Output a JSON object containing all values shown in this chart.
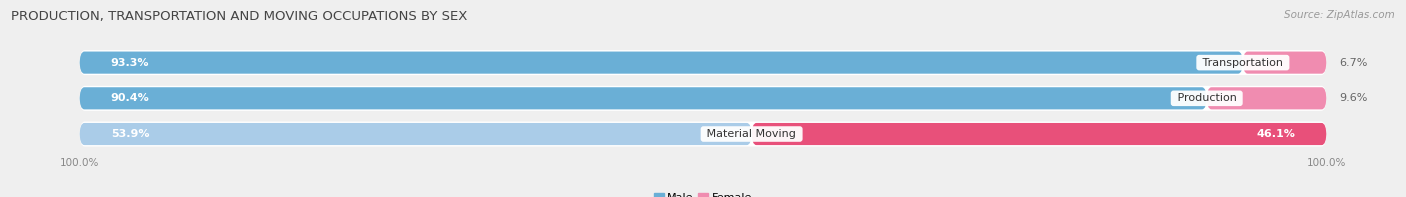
{
  "title": "PRODUCTION, TRANSPORTATION AND MOVING OCCUPATIONS BY SEX",
  "source": "Source: ZipAtlas.com",
  "categories": [
    "Transportation",
    "Production",
    "Material Moving"
  ],
  "male_values": [
    93.3,
    90.4,
    53.9
  ],
  "female_values": [
    6.7,
    9.6,
    46.1
  ],
  "male_colors": [
    "#6aafd6",
    "#6aafd6",
    "#aacce8"
  ],
  "female_colors": [
    "#f08cb0",
    "#f08cb0",
    "#e8507a"
  ],
  "bg_color": "#efefef",
  "row_bg_color": "#f8f8f8",
  "title_color": "#444444",
  "source_color": "#999999",
  "label_white": "#ffffff",
  "label_dark": "#666666",
  "cat_label_color": "#333333",
  "title_fontsize": 9.5,
  "source_fontsize": 7.5,
  "bar_label_fontsize": 8,
  "cat_label_fontsize": 8,
  "legend_fontsize": 8,
  "axis_label_fontsize": 7.5
}
